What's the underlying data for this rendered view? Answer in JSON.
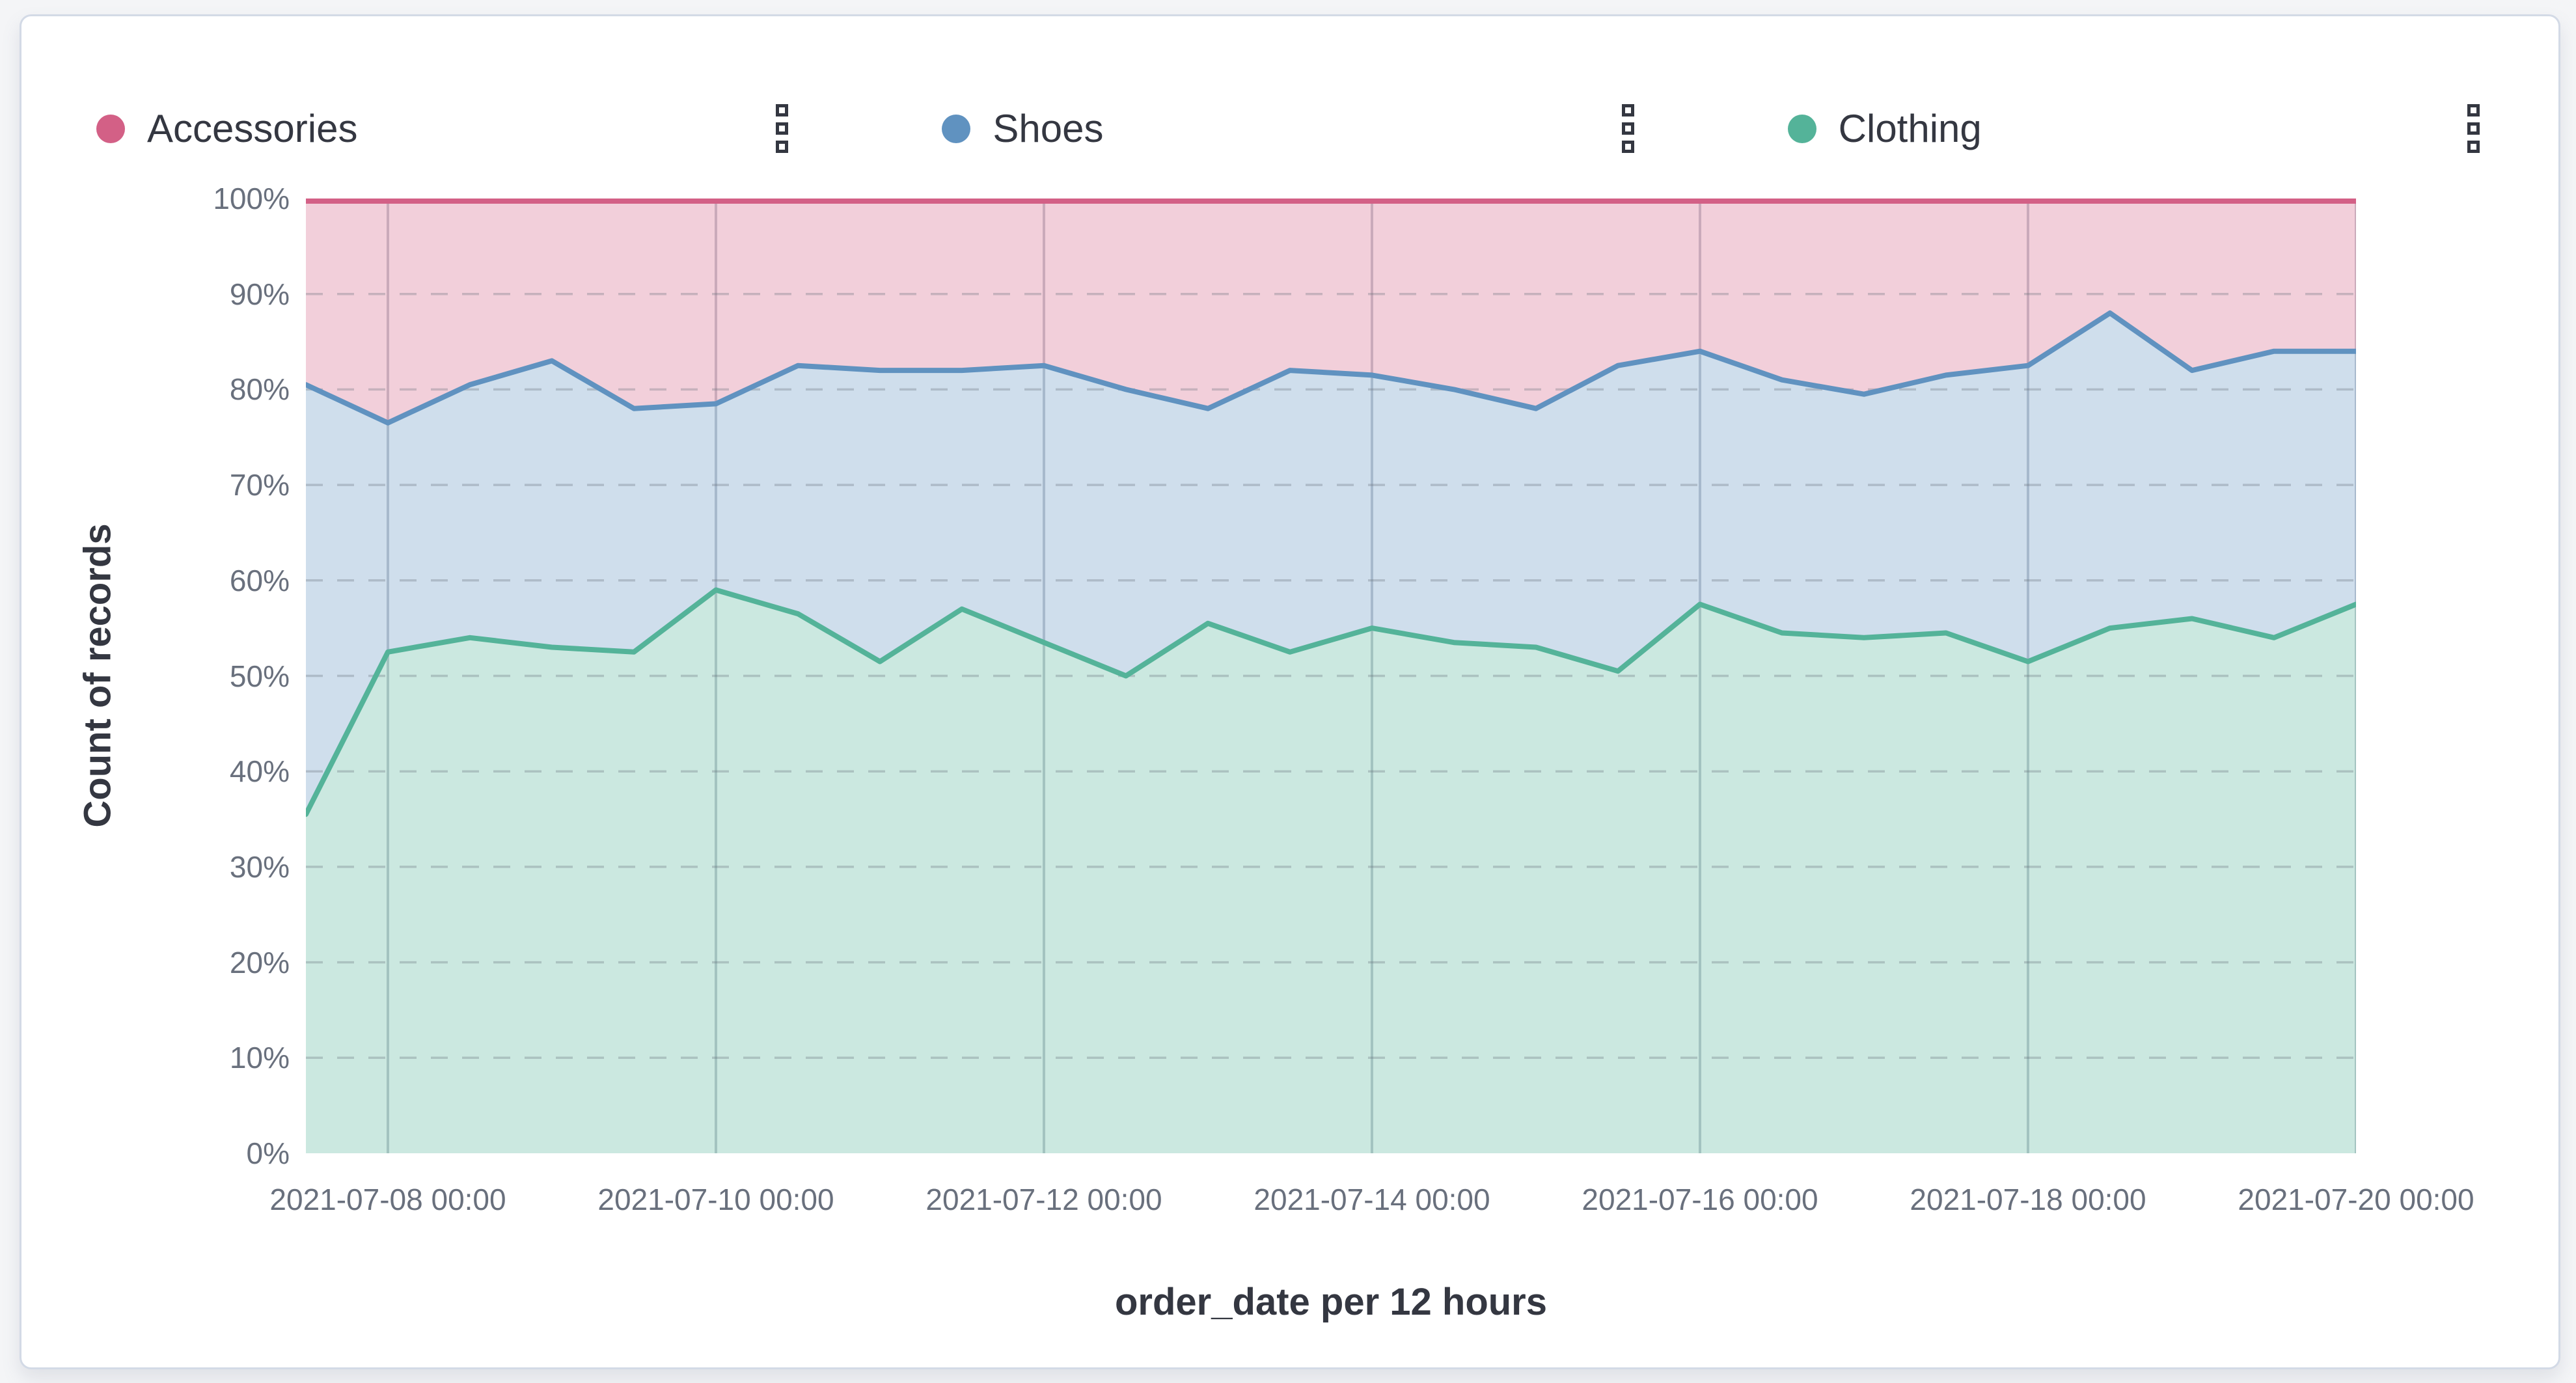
{
  "window": {
    "background": "#f4f5f7",
    "panel_background": "#ffffff",
    "panel_border_color": "#d3dae6"
  },
  "legend": {
    "position": "top",
    "text_color": "#343741",
    "items": [
      {
        "label": "Accessories",
        "color": "#D36086",
        "menu_icon": "boxes-vertical-icon"
      },
      {
        "label": "Shoes",
        "color": "#6092C0",
        "menu_icon": "boxes-vertical-icon"
      },
      {
        "label": "Clothing",
        "color": "#54B399",
        "menu_icon": "boxes-vertical-icon"
      }
    ]
  },
  "y_axis": {
    "title": "Count of records",
    "tick_labels": [
      "0%",
      "10%",
      "20%",
      "30%",
      "40%",
      "50%",
      "60%",
      "70%",
      "80%",
      "90%",
      "100%"
    ],
    "tick_color": "#69707D",
    "title_color": "#343741"
  },
  "x_axis": {
    "title": "order_date per 12 hours",
    "tick_labels": [
      "2021-07-08 00:00",
      "2021-07-10 00:00",
      "2021-07-12 00:00",
      "2021-07-14 00:00",
      "2021-07-16 00:00",
      "2021-07-18 00:00",
      "2021-07-20 00:00"
    ],
    "tick_color": "#69707D",
    "title_color": "#343741"
  },
  "chart_data": {
    "type": "area",
    "stacked": true,
    "normalized_percent": true,
    "title": "",
    "xlabel": "order_date per 12 hours",
    "ylabel": "Count of records",
    "ylim": [
      0,
      100
    ],
    "y_tick_format": "percent",
    "legend_position": "top",
    "grid": {
      "horizontal": "dashed",
      "vertical": "solid"
    },
    "fill_opacity": 0.3,
    "line_width": 8,
    "stack_order_bottom_to_top": [
      "Clothing",
      "Shoes",
      "Accessories"
    ],
    "x": [
      "2021-07-07 12:00",
      "2021-07-08 00:00",
      "2021-07-08 12:00",
      "2021-07-09 00:00",
      "2021-07-09 12:00",
      "2021-07-10 00:00",
      "2021-07-10 12:00",
      "2021-07-11 00:00",
      "2021-07-11 12:00",
      "2021-07-12 00:00",
      "2021-07-12 12:00",
      "2021-07-13 00:00",
      "2021-07-13 12:00",
      "2021-07-14 00:00",
      "2021-07-14 12:00",
      "2021-07-15 00:00",
      "2021-07-15 12:00",
      "2021-07-16 00:00",
      "2021-07-16 12:00",
      "2021-07-17 00:00",
      "2021-07-17 12:00",
      "2021-07-18 00:00",
      "2021-07-18 12:00",
      "2021-07-19 00:00",
      "2021-07-19 12:00",
      "2021-07-20 00:00"
    ],
    "x_tick_labels": [
      "2021-07-08 00:00",
      "2021-07-10 00:00",
      "2021-07-12 00:00",
      "2021-07-14 00:00",
      "2021-07-16 00:00",
      "2021-07-18 00:00",
      "2021-07-20 00:00"
    ],
    "series": [
      {
        "name": "Clothing",
        "color": "#54B399",
        "values": [
          35.5,
          52.5,
          54,
          53,
          52.5,
          59,
          56.5,
          51.5,
          57,
          53.5,
          50,
          55.5,
          52.5,
          55,
          53.5,
          53,
          50.5,
          57.5,
          54.5,
          54,
          54.5,
          51.5,
          55,
          56,
          54,
          57.5
        ]
      },
      {
        "name": "Shoes",
        "color": "#6092C0",
        "values": [
          45,
          24,
          26.5,
          30,
          25.5,
          19.5,
          26,
          30.5,
          25,
          29,
          30,
          22.5,
          29.5,
          26.5,
          26.5,
          25,
          32,
          26.5,
          26.5,
          25.5,
          27,
          31,
          33,
          26,
          30,
          26.5
        ]
      },
      {
        "name": "Accessories",
        "color": "#D36086",
        "values": [
          19.5,
          23.5,
          19.5,
          17,
          22,
          21.5,
          17.5,
          18,
          18,
          17.5,
          20,
          22,
          18,
          18.5,
          20,
          22,
          17.5,
          16,
          19,
          20.5,
          18.5,
          17.5,
          12,
          18,
          16,
          16
        ]
      }
    ]
  }
}
